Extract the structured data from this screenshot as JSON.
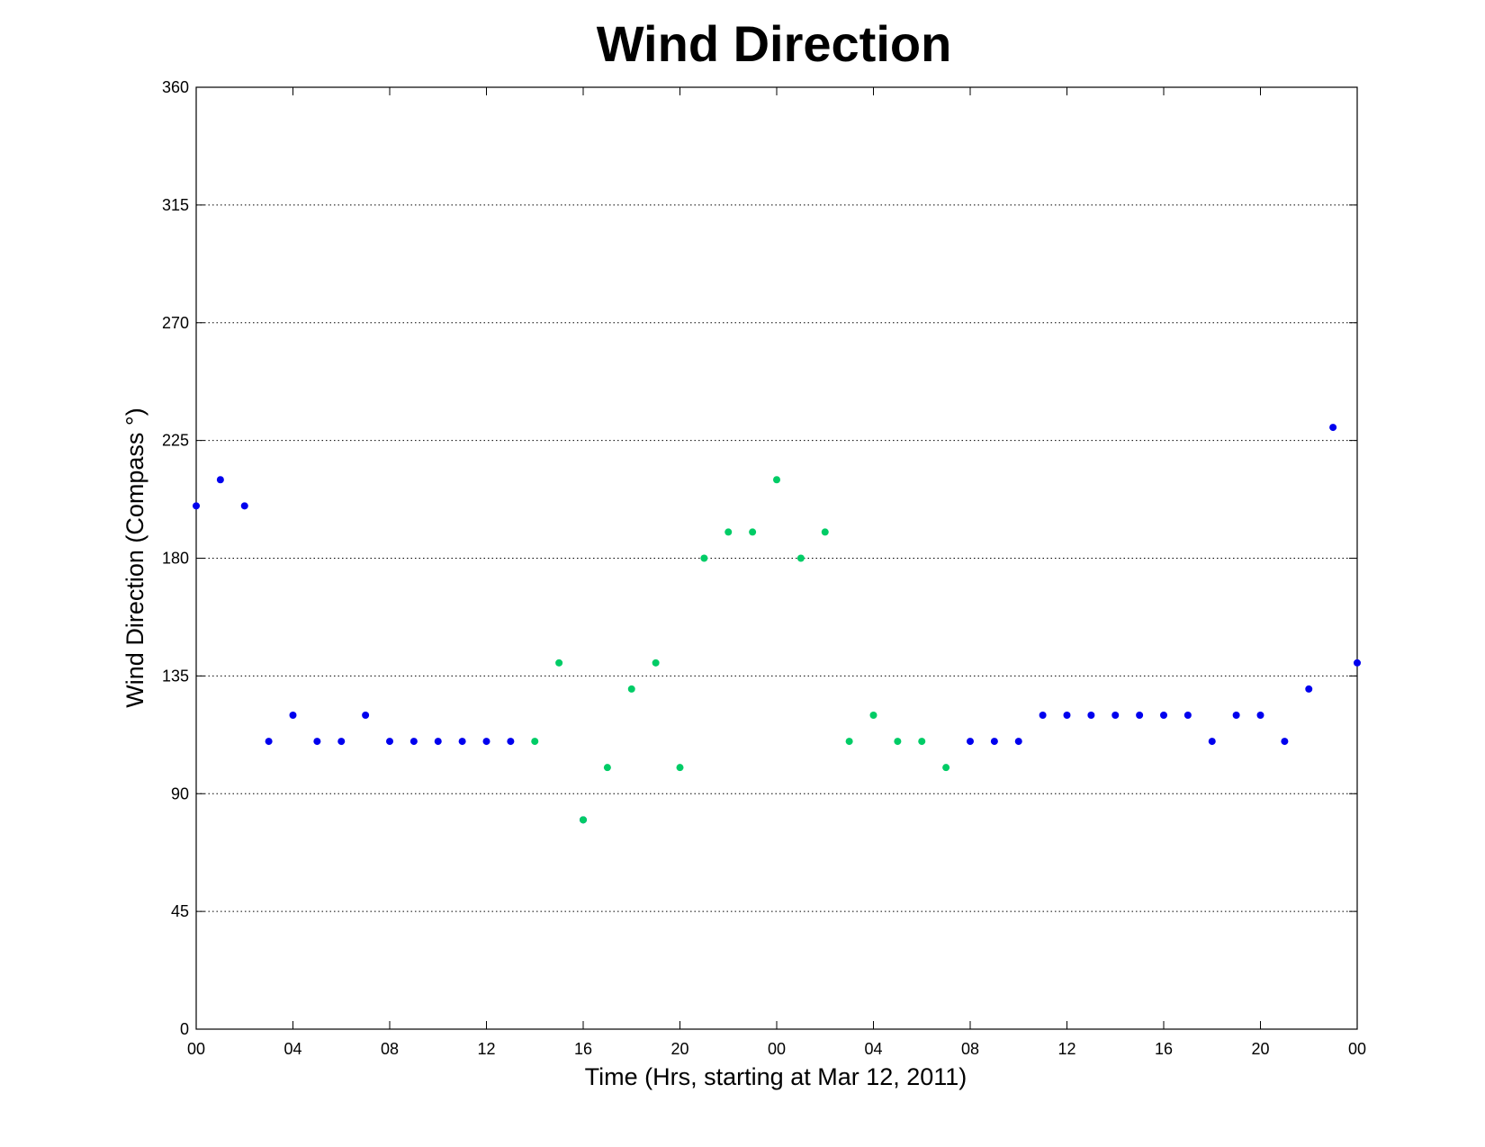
{
  "chart_data": {
    "type": "scatter",
    "title": "Wind Direction",
    "xlabel": "Time (Hrs, starting at Mar 12, 2011)",
    "ylabel": "Wind Direction (Compass °)",
    "xlim": [
      0,
      48
    ],
    "ylim": [
      0,
      360
    ],
    "x_ticks": [
      0,
      4,
      8,
      12,
      16,
      20,
      24,
      28,
      32,
      36,
      40,
      44,
      48
    ],
    "x_tick_labels": [
      "00",
      "04",
      "08",
      "12",
      "16",
      "20",
      "00",
      "04",
      "08",
      "12",
      "16",
      "20",
      "00"
    ],
    "y_ticks": [
      0,
      45,
      90,
      135,
      180,
      225,
      270,
      315,
      360
    ],
    "y_tick_labels": [
      "0",
      "45",
      "90",
      "135",
      "180",
      "225",
      "270",
      "315",
      "360"
    ],
    "grid": "horizontal dotted",
    "colors": {
      "blue": "#0000ee",
      "green": "#00cc66"
    },
    "series": [
      {
        "color": "#0000ee",
        "x": [
          0,
          1,
          2,
          3,
          4,
          5,
          6,
          7,
          8,
          9,
          10,
          11,
          12,
          13,
          16,
          32,
          33,
          34,
          35,
          36,
          37,
          38,
          39,
          40,
          41,
          42,
          43,
          44,
          45,
          46,
          47,
          48
        ],
        "y": [
          200,
          210,
          200,
          110,
          120,
          110,
          110,
          120,
          110,
          110,
          110,
          110,
          110,
          110,
          80,
          110,
          110,
          110,
          120,
          120,
          120,
          120,
          120,
          120,
          120,
          110,
          120,
          120,
          110,
          130,
          230,
          140
        ]
      },
      {
        "color": "#00cc66",
        "x": [
          14,
          15,
          16,
          17,
          18,
          19,
          20,
          21,
          22,
          23,
          24,
          25,
          26,
          27,
          28,
          29,
          30,
          31
        ],
        "y": [
          110,
          140,
          80,
          100,
          130,
          140,
          100,
          180,
          190,
          190,
          210,
          180,
          190,
          110,
          120,
          110,
          110,
          100
        ]
      }
    ]
  }
}
